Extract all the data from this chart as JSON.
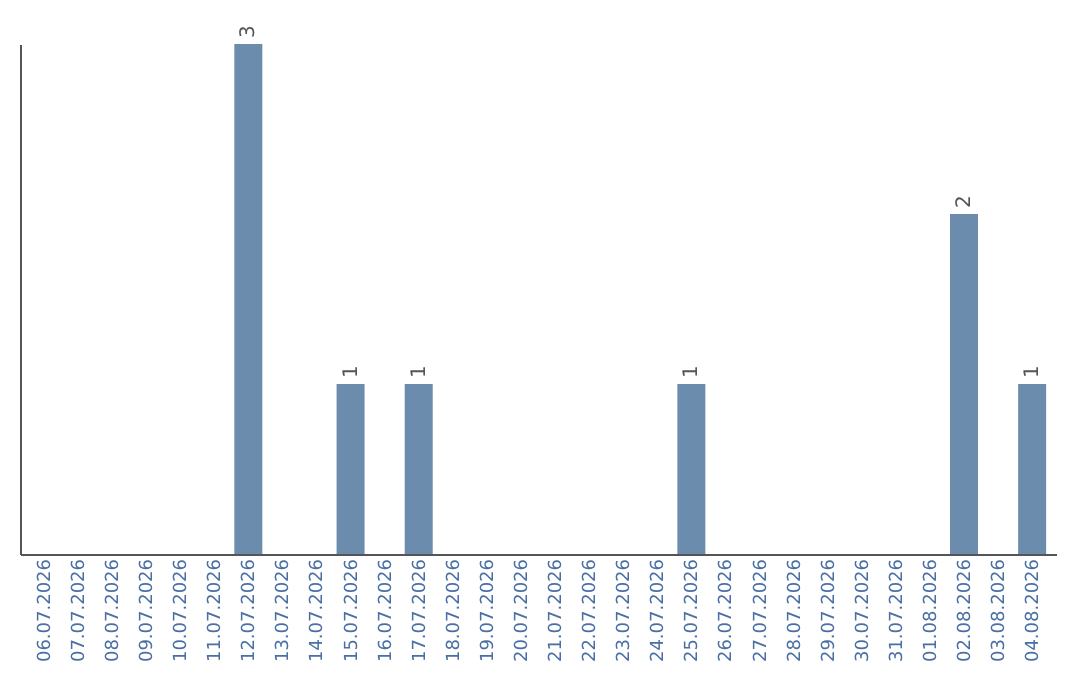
{
  "chart_data": {
    "type": "bar",
    "categories": [
      "06.07.2026",
      "07.07.2026",
      "08.07.2026",
      "09.07.2026",
      "10.07.2026",
      "11.07.2026",
      "12.07.2026",
      "13.07.2026",
      "14.07.2026",
      "15.07.2026",
      "16.07.2026",
      "17.07.2026",
      "18.07.2026",
      "19.07.2026",
      "20.07.2026",
      "21.07.2026",
      "22.07.2026",
      "23.07.2026",
      "24.07.2026",
      "25.07.2026",
      "26.07.2026",
      "27.07.2026",
      "28.07.2026",
      "29.07.2026",
      "30.07.2026",
      "31.07.2026",
      "01.08.2026",
      "02.08.2026",
      "03.08.2026",
      "04.08.2026"
    ],
    "values": [
      null,
      null,
      null,
      null,
      null,
      null,
      3,
      null,
      null,
      1,
      null,
      1,
      null,
      null,
      null,
      null,
      null,
      null,
      null,
      1,
      null,
      null,
      null,
      null,
      null,
      null,
      null,
      2,
      null,
      1
    ],
    "color": "#6b8cad",
    "data_labels": true,
    "tick_labels": "x",
    "grid": false
  }
}
